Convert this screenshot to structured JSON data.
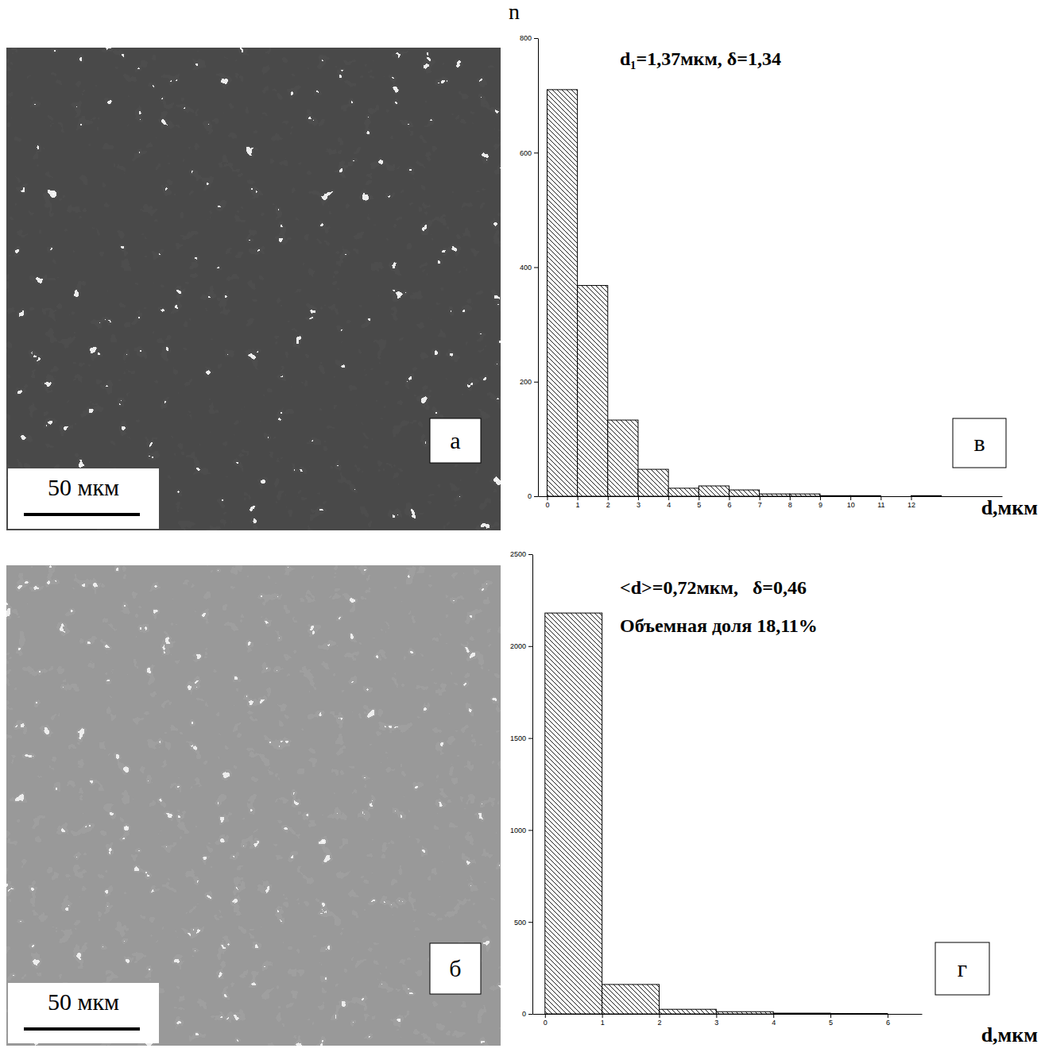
{
  "images": [
    {
      "label": "а",
      "scale_bar": "50 мкм"
    },
    {
      "label": "б",
      "scale_bar": "50 мкм"
    }
  ],
  "chart_data": [
    {
      "type": "histogram",
      "label": "в",
      "y_label": "n",
      "x_label": "d,мкм",
      "annotations": [
        "d₁=1,37мкм, δ=1,34"
      ],
      "bins": [
        0,
        1,
        2,
        3,
        4,
        5,
        6,
        7,
        8,
        9,
        10,
        11,
        12,
        13
      ],
      "values": [
        710,
        368,
        133,
        47,
        14,
        18,
        11,
        4,
        4,
        1,
        1,
        0,
        1
      ],
      "xlim": [
        -0.3,
        15
      ],
      "xticks": [
        0,
        1,
        2,
        3,
        4,
        5,
        6,
        7,
        8,
        9,
        10,
        11,
        12
      ],
      "ylim": [
        0,
        800
      ],
      "yticks": [
        0,
        200,
        400,
        600,
        800
      ]
    },
    {
      "type": "histogram",
      "label": "г",
      "x_label": "d,мкм",
      "annotations": [
        "<d>=0,72мкм,   δ=0,46",
        "Объемная доля 18,11%"
      ],
      "bins": [
        0,
        1,
        2,
        3,
        4,
        5,
        6
      ],
      "values": [
        2180,
        160,
        25,
        12,
        4,
        2
      ],
      "xlim": [
        -0.22,
        6.6
      ],
      "xticks": [
        0,
        1,
        2,
        3,
        4,
        5,
        6
      ],
      "ylim": [
        0,
        2500
      ],
      "yticks": [
        0,
        500,
        1000,
        1500,
        2000,
        2500
      ]
    }
  ]
}
